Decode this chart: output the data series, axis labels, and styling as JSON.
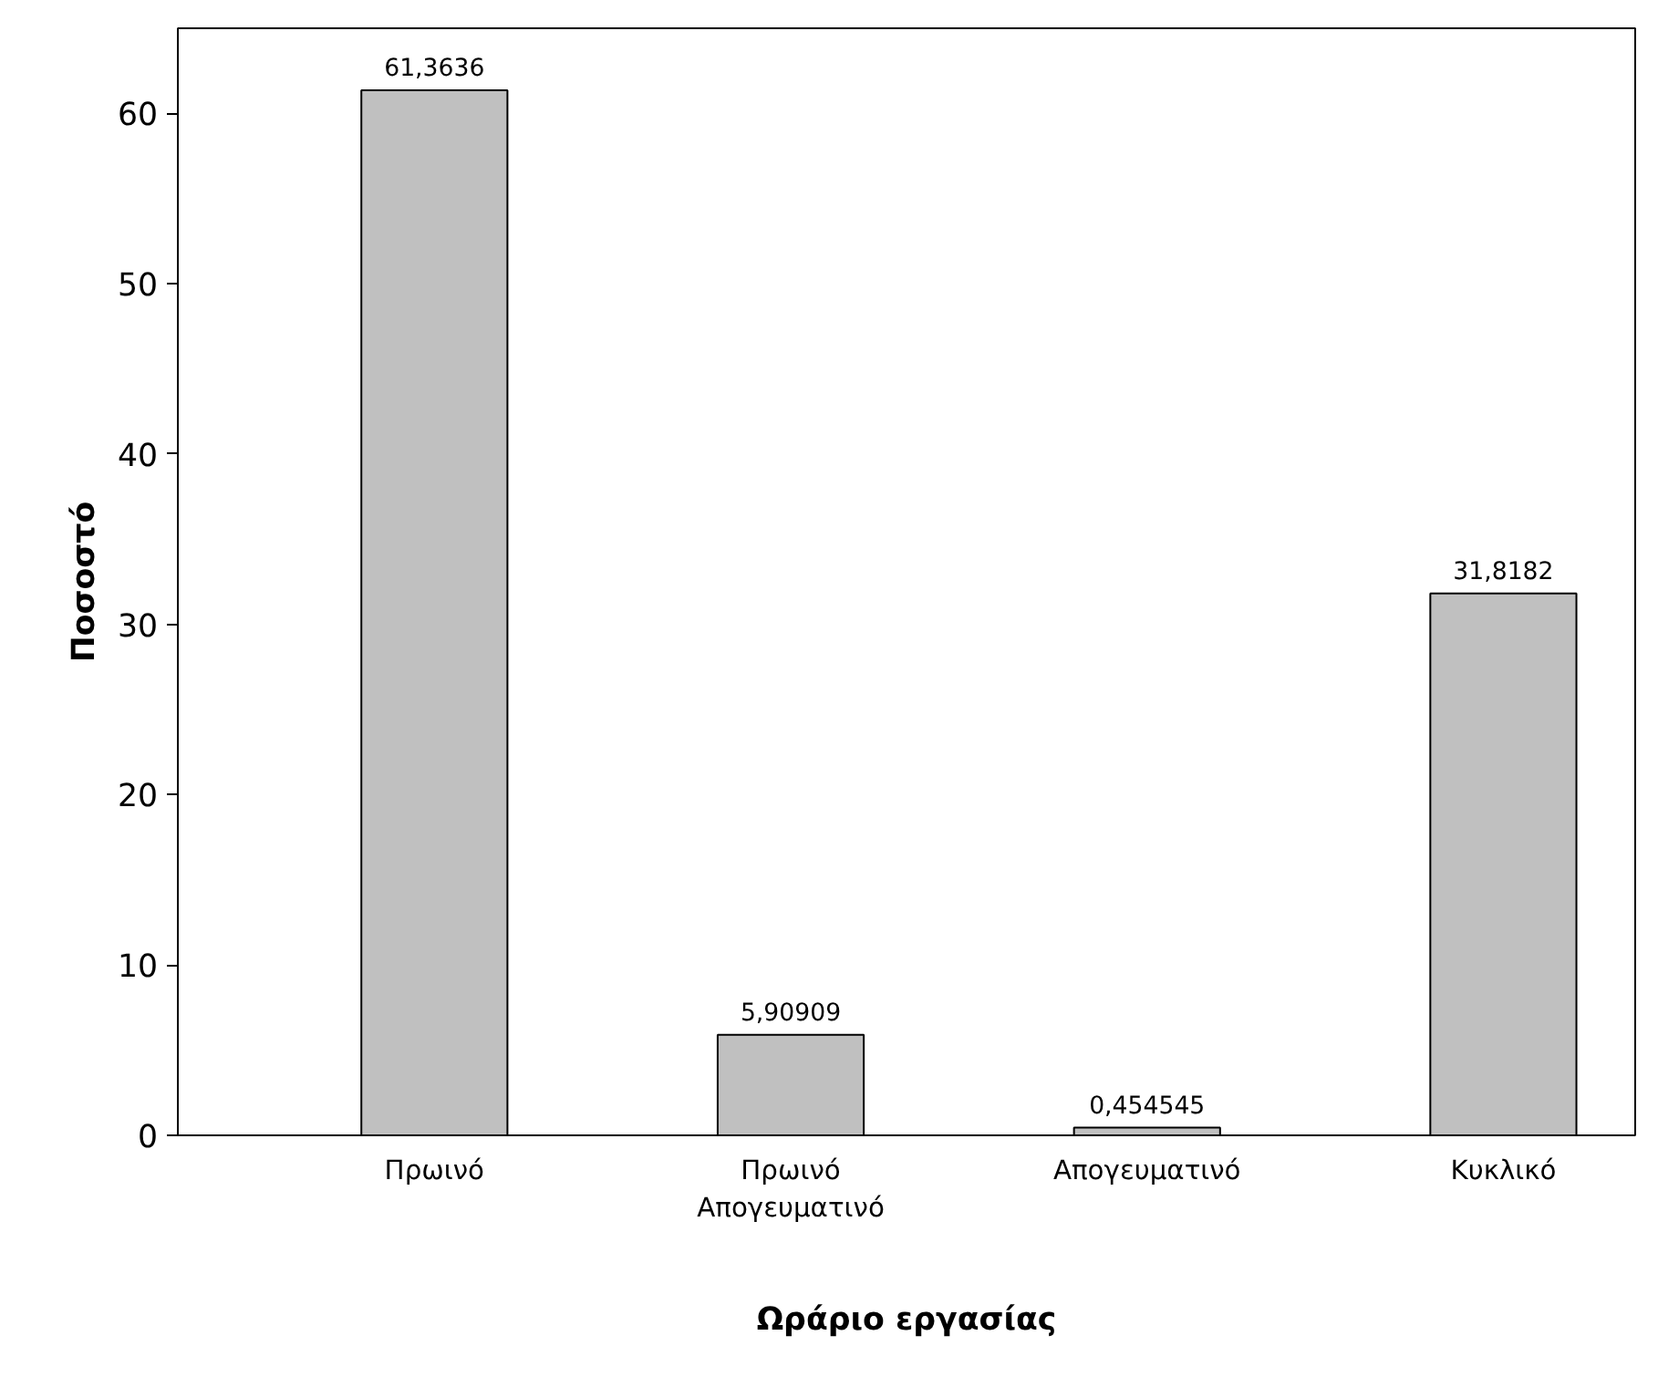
{
  "chart_data": {
    "type": "bar",
    "xlabel": "Ωράριο εργασίας",
    "ylabel": "Ποσοστό",
    "categories": [
      "Πρωινό",
      "Πρωινό Απογευματινό",
      "Απογευματινό",
      "Κυκλικό"
    ],
    "values": [
      61.3636,
      5.90909,
      0.454545,
      31.8182
    ],
    "value_labels": [
      "61,3636",
      "5,90909",
      "0,454545",
      "31,8182"
    ],
    "color": "#c0c0c0",
    "ylim": [
      0,
      65
    ],
    "yticks": [
      0,
      10,
      20,
      30,
      40,
      50,
      60
    ],
    "grid": false
  }
}
